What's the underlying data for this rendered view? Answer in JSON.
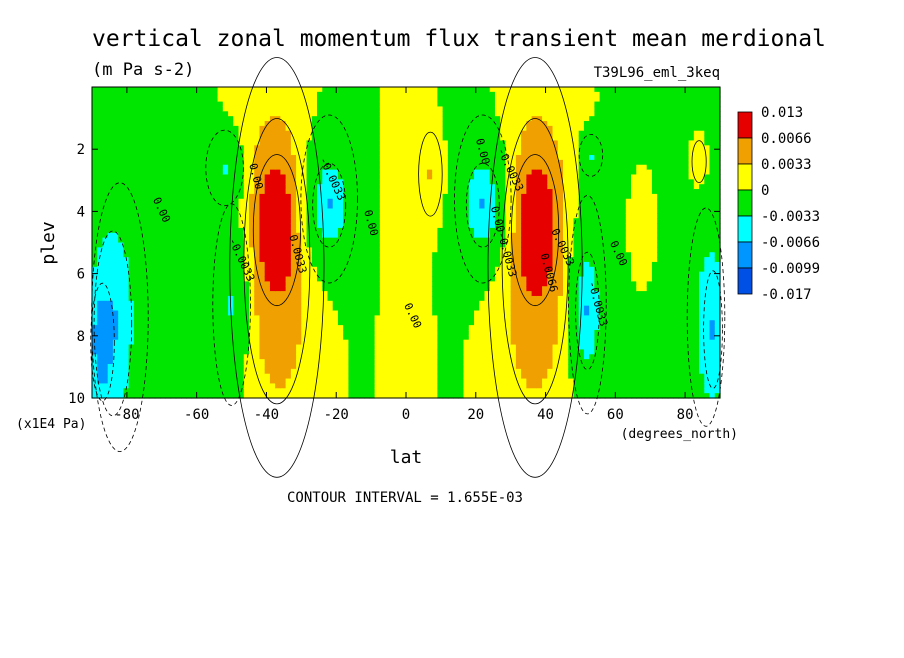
{
  "chart_data": {
    "type": "heatmap",
    "title": "vertical zonal momentum flux transient mean merdional",
    "units": "(m Pa s-2)",
    "dataset": "T39L96_eml_3keq",
    "xlabel": "lat",
    "xunits": "(degrees_north)",
    "ylabel": "plev",
    "yunits": "(x1E4 Pa)",
    "xlim": [
      -90,
      90
    ],
    "ylim": [
      0,
      10
    ],
    "y_inverted": true,
    "xticks": [
      -80,
      -60,
      -40,
      -20,
      0,
      20,
      40,
      60,
      80
    ],
    "xtick_labels": [
      "-80",
      "-60",
      "-40",
      "-20",
      "0",
      "20",
      "40",
      "60",
      "80"
    ],
    "yticks": [
      2,
      4,
      6,
      8,
      10
    ],
    "ytick_labels": [
      "2",
      "4",
      "6",
      "8",
      "10"
    ],
    "footer": "CONTOUR INTERVAL = 1.655E-03",
    "colorbar": {
      "colors": [
        "#e60000",
        "#f0a000",
        "#ffff00",
        "#00e600",
        "#00ffff",
        "#0096ff",
        "#0050e6"
      ],
      "labels": [
        "0.013",
        "0.0066",
        "0.0033",
        "0",
        "-0.0033",
        "-0.0066",
        "-0.0099",
        "-0.017"
      ]
    },
    "contour_labels": [
      {
        "text": "0.00",
        "x": -71,
        "y": 4.0
      },
      {
        "text": "0.00",
        "x": -44,
        "y": 2.9
      },
      {
        "text": "-0.0033",
        "x": -48,
        "y": 5.6
      },
      {
        "text": "0.0033",
        "x": -32,
        "y": 5.4
      },
      {
        "text": "-0.0033",
        "x": -22,
        "y": 3.0
      },
      {
        "text": "0.00",
        "x": -11,
        "y": 4.4
      },
      {
        "text": "0.00",
        "x": 1,
        "y": 7.4
      },
      {
        "text": "0.00",
        "x": 21,
        "y": 2.1
      },
      {
        "text": "-0.0033",
        "x": 29,
        "y": 2.7
      },
      {
        "text": "0.00-0.0033",
        "x": 27,
        "y": 5.0
      },
      {
        "text": "0.0033",
        "x": 44,
        "y": 5.2
      },
      {
        "text": "0.0066",
        "x": 40,
        "y": 6.0
      },
      {
        "text": "0.00",
        "x": 60,
        "y": 5.4
      },
      {
        "text": "-0.0033",
        "x": 54,
        "y": 7.0
      }
    ],
    "features": [
      {
        "x": -37,
        "y": 4.6,
        "value": 0.013,
        "sx": 5,
        "sy": 1.8
      },
      {
        "x": -37,
        "y": 5.6,
        "value": 0.0066,
        "sx": 7,
        "sy": 3.4
      },
      {
        "x": -37,
        "y": 5.8,
        "value": 0.0033,
        "sx": 10,
        "sy": 5.0
      },
      {
        "x": 37,
        "y": 4.6,
        "value": 0.013,
        "sx": 5,
        "sy": 1.8
      },
      {
        "x": 37,
        "y": 5.6,
        "value": 0.0066,
        "sx": 7,
        "sy": 3.4
      },
      {
        "x": 37,
        "y": 5.8,
        "value": 0.0033,
        "sx": 10,
        "sy": 5.0
      },
      {
        "x": -22,
        "y": 3.8,
        "value": -0.0066,
        "sx": 3.5,
        "sy": 1.0
      },
      {
        "x": -22,
        "y": 3.6,
        "value": -0.0033,
        "sx": 6,
        "sy": 2.0
      },
      {
        "x": 22,
        "y": 3.8,
        "value": -0.0066,
        "sx": 3.5,
        "sy": 1.0
      },
      {
        "x": 22,
        "y": 3.6,
        "value": -0.0033,
        "sx": 6,
        "sy": 2.0
      },
      {
        "x": -52,
        "y": 2.6,
        "value": -0.0033,
        "sx": 4,
        "sy": 0.9
      },
      {
        "x": -50,
        "y": 7.0,
        "value": -0.0033,
        "sx": 4,
        "sy": 2.4
      },
      {
        "x": 53,
        "y": 2.2,
        "value": -0.0033,
        "sx": 2.5,
        "sy": 0.5
      },
      {
        "x": 52,
        "y": 7.2,
        "value": -0.0066,
        "sx": 2.5,
        "sy": 1.4
      },
      {
        "x": 52,
        "y": 7.0,
        "value": -0.0033,
        "sx": 4,
        "sy": 2.6
      },
      {
        "x": -87,
        "y": 8.2,
        "value": -0.0099,
        "sx": 2.5,
        "sy": 1.4
      },
      {
        "x": -84,
        "y": 7.6,
        "value": -0.0066,
        "sx": 4,
        "sy": 2.2
      },
      {
        "x": -82,
        "y": 7.4,
        "value": -0.0033,
        "sx": 6,
        "sy": 3.2
      },
      {
        "x": 86,
        "y": 7.4,
        "value": -0.0033,
        "sx": 4,
        "sy": 2.6
      },
      {
        "x": 88,
        "y": 7.8,
        "value": -0.0066,
        "sx": 2,
        "sy": 1.4
      },
      {
        "x": 7,
        "y": 2.8,
        "value": 0.0033,
        "sx": 2.5,
        "sy": 1.0
      },
      {
        "x": 84,
        "y": 2.4,
        "value": 0.0033,
        "sx": 1.5,
        "sy": 0.5
      }
    ]
  }
}
